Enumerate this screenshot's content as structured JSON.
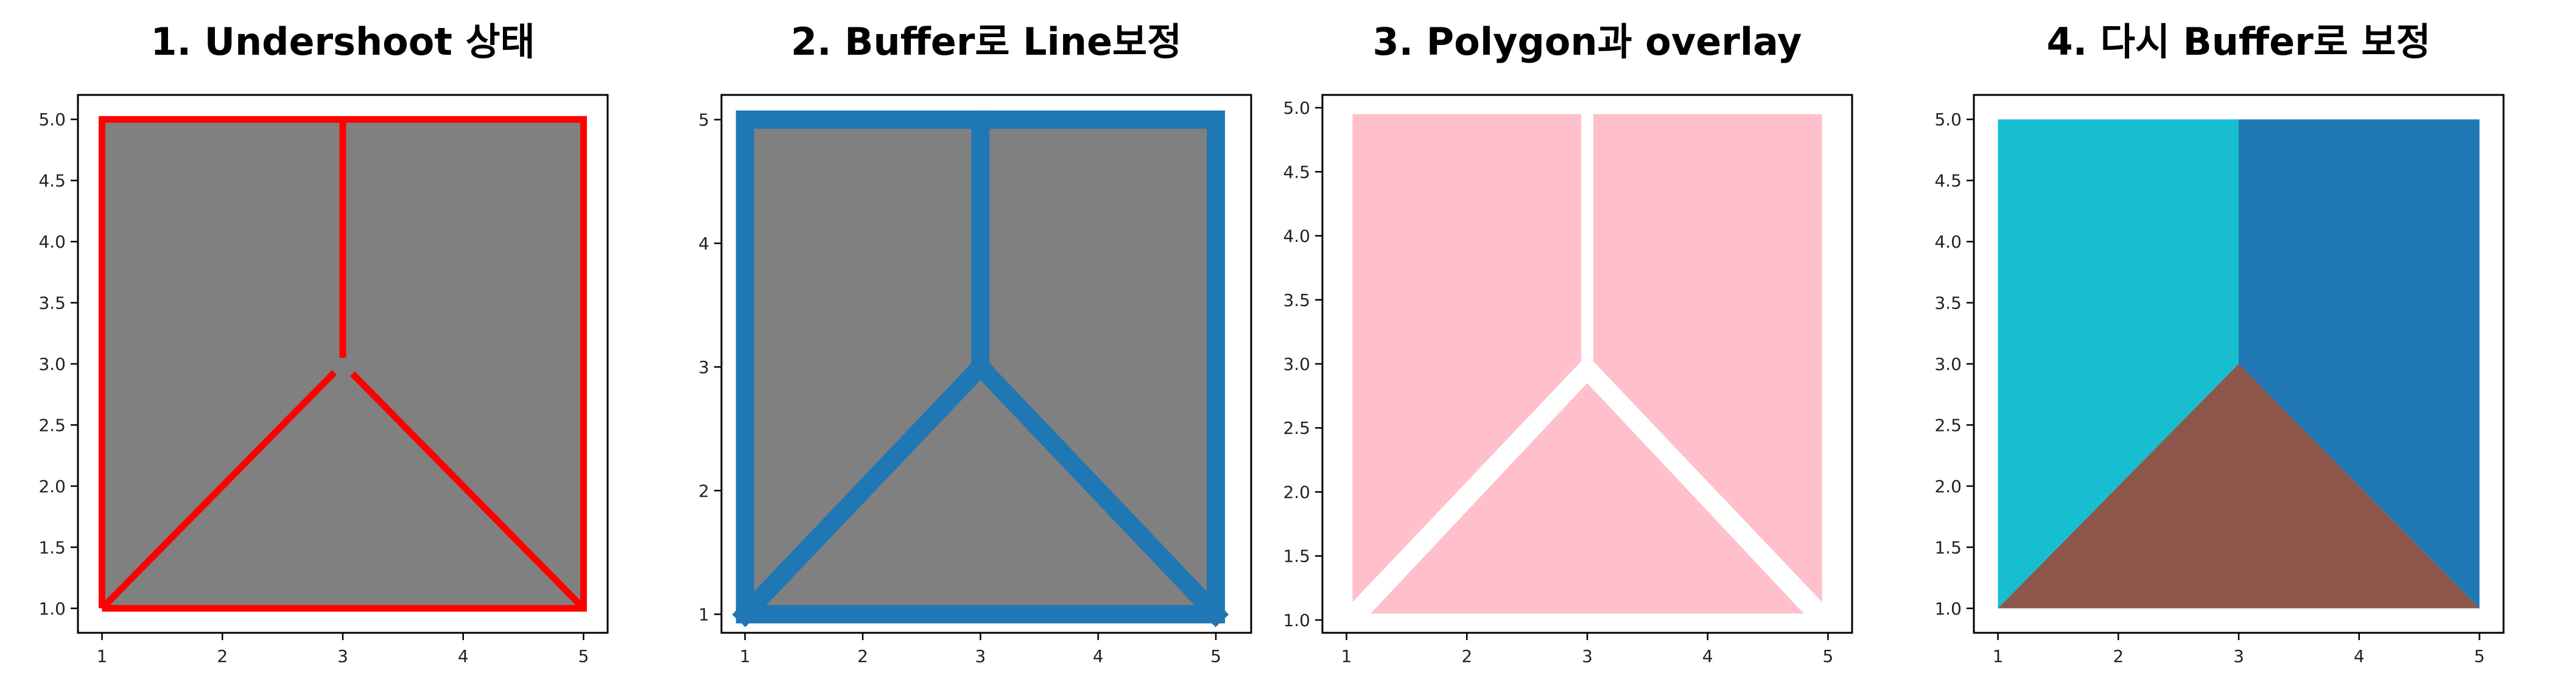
{
  "figure": {
    "background": "#ffffff",
    "frame_color": "#000000"
  },
  "chart_data": [
    {
      "type": "map",
      "title": "1. Undershoot 상태",
      "xlim": [
        0.8,
        5.2
      ],
      "ylim": [
        0.8,
        5.2
      ],
      "xticks": [
        1,
        2,
        3,
        4,
        5
      ],
      "xtick_labels": [
        "1",
        "2",
        "3",
        "4",
        "5"
      ],
      "yticks": [
        1.0,
        1.5,
        2.0,
        2.5,
        3.0,
        3.5,
        4.0,
        4.5,
        5.0
      ],
      "ytick_labels": [
        "1.0",
        "1.5",
        "2.0",
        "2.5",
        "3.0",
        "3.5",
        "4.0",
        "4.5",
        "5.0"
      ],
      "polygons": [
        {
          "name": "square",
          "color": "#808080",
          "points": [
            [
              1,
              1
            ],
            [
              5,
              1
            ],
            [
              5,
              5
            ],
            [
              1,
              5
            ]
          ]
        }
      ],
      "lines": [
        {
          "name": "boundary",
          "color": "#ff0000",
          "points": [
            [
              1,
              1
            ],
            [
              5,
              1
            ],
            [
              5,
              5
            ],
            [
              1,
              5
            ],
            [
              1,
              1
            ]
          ]
        },
        {
          "name": "vertical-line",
          "color": "#ff0000",
          "points": [
            [
              3,
              5
            ],
            [
              3,
              3.05
            ]
          ]
        },
        {
          "name": "left-diagonal",
          "color": "#ff0000",
          "points": [
            [
              1,
              1
            ],
            [
              2.93,
              2.93
            ]
          ]
        },
        {
          "name": "right-diagonal",
          "color": "#ff0000",
          "points": [
            [
              5,
              1
            ],
            [
              3.08,
              2.92
            ]
          ]
        }
      ]
    },
    {
      "type": "map",
      "title": "2. Buffer로 Line보정",
      "xlim": [
        0.8,
        5.3
      ],
      "ylim": [
        0.85,
        5.2
      ],
      "xticks": [
        1,
        2,
        3,
        4,
        5
      ],
      "xtick_labels": [
        "1",
        "2",
        "3",
        "4",
        "5"
      ],
      "yticks": [
        1,
        2,
        3,
        4,
        5
      ],
      "ytick_labels": [
        "1",
        "2",
        "3",
        "4",
        "5"
      ],
      "polygons": [
        {
          "name": "square",
          "color": "#808080",
          "points": [
            [
              1,
              1
            ],
            [
              5,
              1
            ],
            [
              5,
              5
            ],
            [
              1,
              5
            ]
          ]
        }
      ],
      "buffered_lines": [
        {
          "name": "boundary",
          "color": "#1f77b4",
          "points": [
            [
              1,
              1
            ],
            [
              5,
              1
            ],
            [
              5,
              5
            ],
            [
              1,
              5
            ],
            [
              1,
              1
            ]
          ]
        },
        {
          "name": "vertical-line",
          "color": "#1f77b4",
          "points": [
            [
              3,
              5
            ],
            [
              3,
              3
            ]
          ]
        },
        {
          "name": "left-diagonal",
          "color": "#1f77b4",
          "points": [
            [
              1,
              1
            ],
            [
              3,
              3
            ]
          ]
        },
        {
          "name": "right-diagonal",
          "color": "#1f77b4",
          "points": [
            [
              5,
              1
            ],
            [
              3,
              3
            ]
          ]
        }
      ]
    },
    {
      "type": "map",
      "title": "3. Polygon과 overlay",
      "xlim": [
        0.8,
        5.2
      ],
      "ylim": [
        0.9,
        5.1
      ],
      "xticks": [
        1,
        2,
        3,
        4,
        5
      ],
      "xtick_labels": [
        "1",
        "2",
        "3",
        "4",
        "5"
      ],
      "yticks": [
        1.0,
        1.5,
        2.0,
        2.5,
        3.0,
        3.5,
        4.0,
        4.5,
        5.0
      ],
      "ytick_labels": [
        "1.0",
        "1.5",
        "2.0",
        "2.5",
        "3.0",
        "3.5",
        "4.0",
        "4.5",
        "5.0"
      ],
      "polygons": [
        {
          "name": "left-piece",
          "color": "#ffc0cb",
          "points": [
            [
              1.05,
              4.95
            ],
            [
              2.95,
              4.95
            ],
            [
              2.95,
              3.02
            ],
            [
              1.05,
              1.14
            ]
          ]
        },
        {
          "name": "right-piece",
          "color": "#ffc0cb",
          "points": [
            [
              3.05,
              4.95
            ],
            [
              4.95,
              4.95
            ],
            [
              4.95,
              1.14
            ],
            [
              3.05,
              3.02
            ]
          ]
        },
        {
          "name": "bottom-piece",
          "color": "#ffc0cb",
          "points": [
            [
              1.2,
              1.05
            ],
            [
              4.8,
              1.05
            ],
            [
              3,
              2.85
            ]
          ]
        }
      ]
    },
    {
      "type": "map",
      "title": "4. 다시 Buffer로 보정",
      "xlim": [
        0.8,
        5.2
      ],
      "ylim": [
        0.8,
        5.2
      ],
      "xticks": [
        1,
        2,
        3,
        4,
        5
      ],
      "xtick_labels": [
        "1",
        "2",
        "3",
        "4",
        "5"
      ],
      "yticks": [
        1.0,
        1.5,
        2.0,
        2.5,
        3.0,
        3.5,
        4.0,
        4.5,
        5.0
      ],
      "ytick_labels": [
        "1.0",
        "1.5",
        "2.0",
        "2.5",
        "3.0",
        "3.5",
        "4.0",
        "4.5",
        "5.0"
      ],
      "polygons": [
        {
          "name": "left-region",
          "color": "#17becf",
          "points": [
            [
              1,
              1
            ],
            [
              1,
              5
            ],
            [
              3,
              5
            ],
            [
              3,
              3
            ]
          ]
        },
        {
          "name": "right-region",
          "color": "#1f77b4",
          "points": [
            [
              3,
              5
            ],
            [
              5,
              5
            ],
            [
              5,
              1
            ],
            [
              3,
              3
            ]
          ]
        },
        {
          "name": "bottom-region",
          "color": "#8c564b",
          "points": [
            [
              1,
              1
            ],
            [
              5,
              1
            ],
            [
              3,
              3
            ]
          ]
        }
      ]
    }
  ]
}
